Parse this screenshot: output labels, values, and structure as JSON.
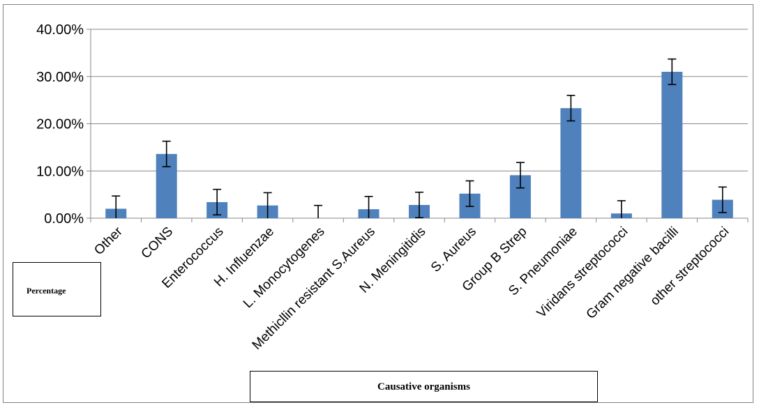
{
  "chart_data": {
    "type": "bar",
    "xlabel": "Causative organisms",
    "ylabel": "Percentage",
    "ylim": [
      0,
      40
    ],
    "y_ticks": [
      "0.00%",
      "10.00%",
      "20.00%",
      "30.00%",
      "40.00%"
    ],
    "grid": true,
    "error_bars": true,
    "bar_color": "#4f81bd",
    "categories": [
      "Other",
      "CONS",
      "Enterococcus",
      "H. Influenzae",
      "L. Monocytogenes",
      "Methicllin resistant S.Aureus",
      "N. Meningitidis",
      "S. Aureus",
      "Group B Strep",
      "S. Pneumoniae",
      "Viridans streptococci",
      "Gram negative bacilli",
      "other streptococci"
    ],
    "values": [
      2.0,
      13.6,
      3.4,
      2.7,
      0.0,
      1.9,
      2.8,
      5.2,
      9.1,
      23.3,
      1.0,
      31.0,
      3.9
    ],
    "error": [
      2.7,
      2.7,
      2.7,
      2.7,
      2.7,
      2.7,
      2.7,
      2.7,
      2.7,
      2.7,
      2.7,
      2.7,
      2.7
    ]
  }
}
